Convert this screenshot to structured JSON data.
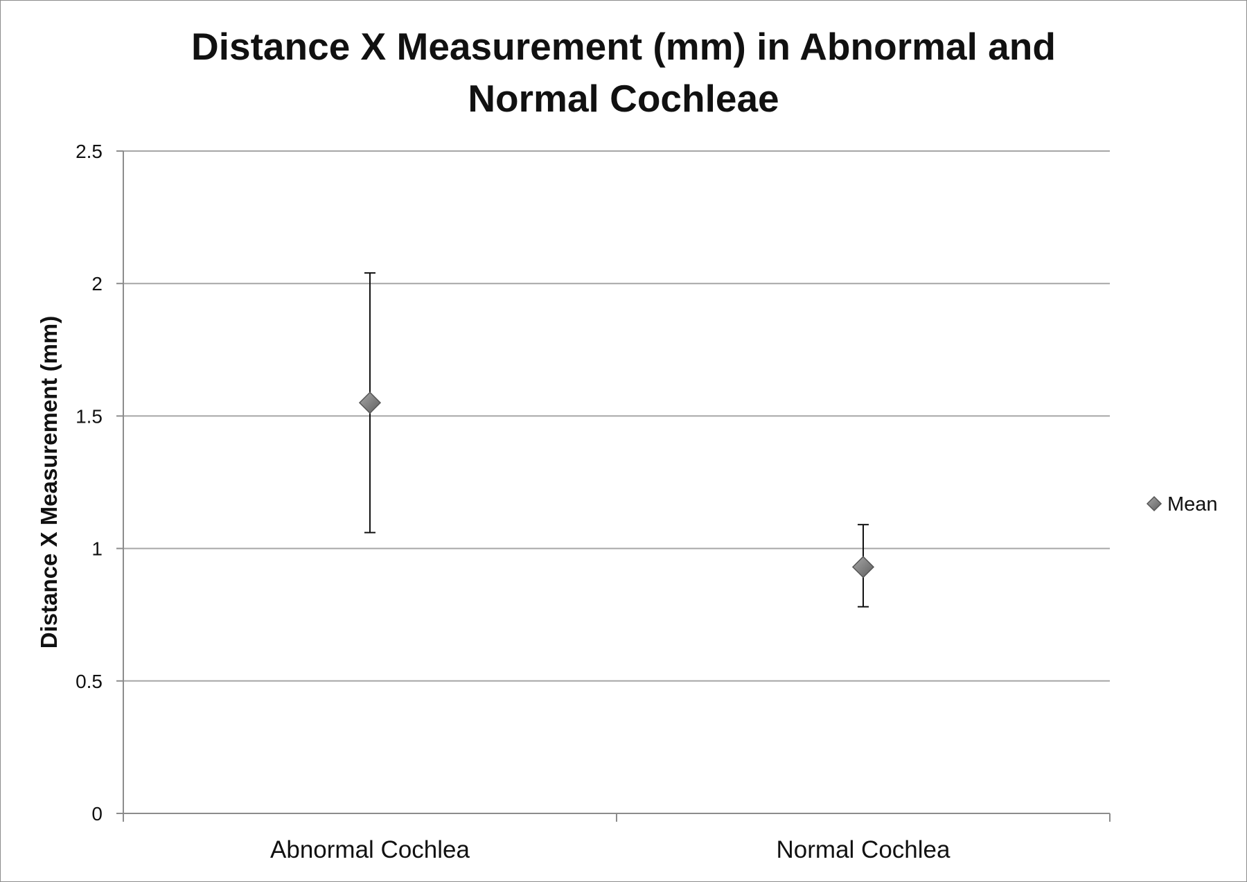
{
  "chart_data": {
    "type": "scatter",
    "title_lines": [
      "Distance X Measurement (mm) in Abnormal and",
      "Normal Cochleae"
    ],
    "xlabel": "",
    "ylabel": "Distance X Measurement (mm)",
    "ylim": [
      0,
      2.5
    ],
    "yticks": [
      0,
      0.5,
      1,
      1.5,
      2,
      2.5
    ],
    "ytick_labels": [
      "0",
      "0.5",
      "1",
      "1.5",
      "2",
      "2.5"
    ],
    "categories": [
      "Abnormal Cochlea",
      "Normal Cochlea"
    ],
    "grid": true,
    "legend": "right",
    "series": [
      {
        "name": "Mean",
        "values": [
          1.55,
          0.93
        ],
        "error_low": [
          1.06,
          0.78
        ],
        "error_high": [
          2.04,
          1.09
        ],
        "marker": "diamond",
        "color": "#7a7a7a"
      }
    ],
    "colors": {
      "gridline": "#a6a6a6",
      "axis": "#8c8c8c",
      "error_bar": "#111111"
    }
  }
}
